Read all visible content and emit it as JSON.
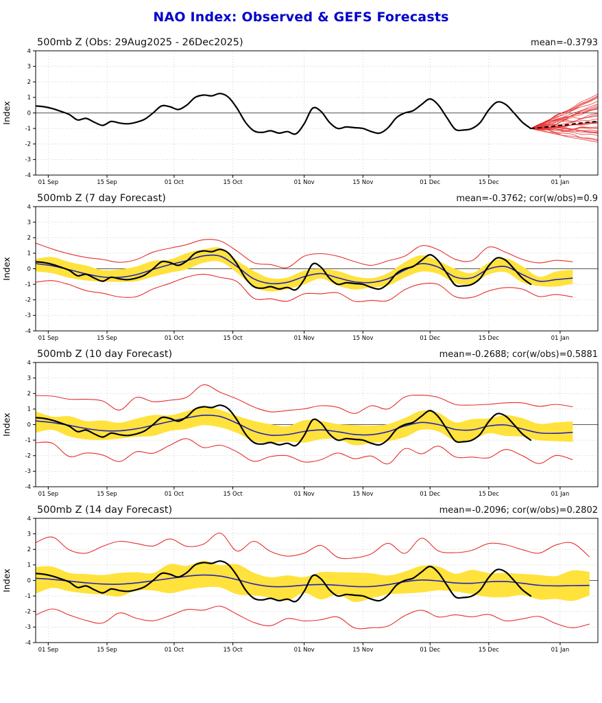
{
  "page_title": "NAO Index: Observed & GEFS Forecasts",
  "ylabel": "Index",
  "colors": {
    "title": "#0000cc",
    "observed_line": "#000000",
    "ensemble_member_line": "#e62e2e",
    "ensemble_mean_line": "#2323b4",
    "spread_band": "#ffe23c",
    "grid": "#aaaaaa",
    "zero_line": "#555555",
    "axis": "#000000"
  },
  "chart_data": {
    "type": "line",
    "x_unit": "days since 29Aug2025",
    "ylim": [
      -4,
      4
    ],
    "yticks": [
      -4,
      -3,
      -2,
      -1,
      0,
      1,
      2,
      3,
      4
    ],
    "xticks": [
      {
        "day": 3,
        "label": "01 Sep"
      },
      {
        "day": 17,
        "label": "15 Sep"
      },
      {
        "day": 33,
        "label": "01 Oct"
      },
      {
        "day": 47,
        "label": "15 Oct"
      },
      {
        "day": 64,
        "label": "01 Nov"
      },
      {
        "day": 78,
        "label": "15 Nov"
      },
      {
        "day": 94,
        "label": "01 Dec"
      },
      {
        "day": 108,
        "label": "15 Dec"
      },
      {
        "day": 125,
        "label": "01 Jan"
      }
    ],
    "observed": {
      "label": "Observed NAO index (black)",
      "start_day": 0,
      "step_days": 2,
      "values": [
        0.45,
        0.4,
        0.28,
        0.1,
        -0.1,
        -0.45,
        -0.35,
        -0.6,
        -0.8,
        -0.55,
        -0.65,
        -0.7,
        -0.6,
        -0.4,
        0.0,
        0.45,
        0.4,
        0.22,
        0.5,
        1.0,
        1.15,
        1.1,
        1.25,
        1.0,
        0.3,
        -0.6,
        -1.15,
        -1.25,
        -1.15,
        -1.3,
        -1.2,
        -1.35,
        -0.7,
        0.3,
        0.1,
        -0.6,
        -1.0,
        -0.9,
        -0.95,
        -1.0,
        -1.2,
        -1.3,
        -0.95,
        -0.3,
        0.0,
        0.15,
        0.55,
        0.9,
        0.5,
        -0.3,
        -1.05,
        -1.1,
        -1.0,
        -0.6,
        0.2,
        0.7,
        0.55,
        0.0,
        -0.6,
        -1.0
      ]
    },
    "panels": [
      {
        "title": "500mb Z (Obs: 29Aug2025 - 26Dec2025)",
        "stats": "mean=-0.3793",
        "kind": "observed_with_members",
        "x_domain": [
          0,
          134
        ],
        "forecast_mean": {
          "days": [
            118,
            122,
            126,
            130,
            134
          ],
          "values": [
            -1.0,
            -0.9,
            -0.78,
            -0.65,
            -0.55
          ]
        },
        "members": {
          "count": 31,
          "start_day": 118,
          "start_value": -1.0,
          "end_day": 134,
          "end_spread": [
            -1.9,
            1.3
          ]
        }
      },
      {
        "title": "500mb Z (7 day Forecast)",
        "stats": "mean=-0.3762; cor(w/obs)=0.9",
        "kind": "forecast_verification",
        "x_domain": [
          0,
          134
        ],
        "ensemble_mean": {
          "start_day": 0,
          "step_days": 4,
          "values": [
            0.33,
            0.19,
            -0.06,
            -0.33,
            -0.53,
            -0.55,
            -0.38,
            -0.04,
            0.27,
            0.52,
            0.83,
            0.81,
            0.14,
            -0.65,
            -0.95,
            -0.87,
            -0.51,
            -0.31,
            -0.58,
            -0.84,
            -0.88,
            -0.64,
            -0.08,
            0.33,
            0.1,
            -0.53,
            -0.58,
            -0.01,
            0.14,
            -0.37,
            -0.8,
            -0.7,
            -0.6
          ]
        },
        "band_half_width": 0.48,
        "envelope_half_width": 1.15
      },
      {
        "title": "500mb Z (10 day Forecast)",
        "stats": "mean=-0.2688; cor(w/obs)=0.5881",
        "kind": "forecast_verification",
        "x_domain": [
          0,
          134
        ],
        "ensemble_mean": {
          "start_day": 0,
          "step_days": 4,
          "values": [
            0.24,
            0.13,
            -0.05,
            -0.25,
            -0.39,
            -0.4,
            -0.27,
            -0.04,
            0.2,
            0.43,
            0.6,
            0.52,
            0.09,
            -0.42,
            -0.68,
            -0.64,
            -0.44,
            -0.34,
            -0.46,
            -0.63,
            -0.65,
            -0.45,
            -0.09,
            0.14,
            0.0,
            -0.31,
            -0.34,
            -0.09,
            -0.02,
            -0.28,
            -0.53,
            -0.56,
            -0.5
          ]
        },
        "band_half_width": 0.65,
        "envelope_half_width": 1.7
      },
      {
        "title": "500mb Z (14 day Forecast)",
        "stats": "mean=-0.2096; cor(w/obs)=0.2802",
        "kind": "forecast_verification",
        "x_domain": [
          0,
          134
        ],
        "ensemble_mean": {
          "start_day": 0,
          "step_days": 4,
          "values": [
            0.14,
            0.07,
            -0.04,
            -0.15,
            -0.23,
            -0.24,
            -0.16,
            -0.02,
            0.13,
            0.27,
            0.35,
            0.28,
            0.05,
            -0.23,
            -0.39,
            -0.39,
            -0.3,
            -0.26,
            -0.31,
            -0.39,
            -0.39,
            -0.27,
            -0.08,
            0.03,
            -0.03,
            -0.16,
            -0.18,
            -0.09,
            -0.07,
            -0.18,
            -0.31,
            -0.35,
            -0.33,
            -0.32
          ]
        },
        "band_half_width": 0.85,
        "envelope_half_width": 2.3
      }
    ]
  }
}
